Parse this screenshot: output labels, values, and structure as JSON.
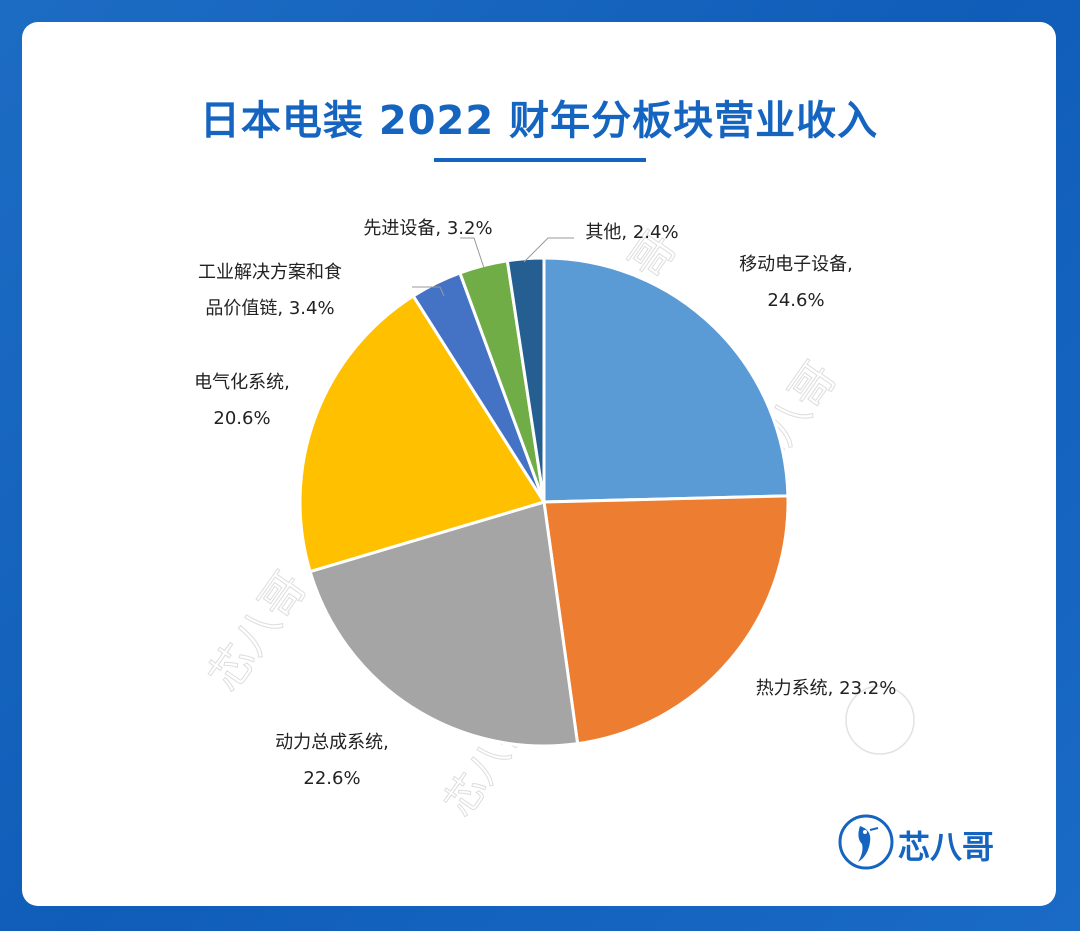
{
  "page": {
    "title": "日本电装 2022 财年分板块营业收入",
    "brand": "芯八哥",
    "watermark": "芯八哥"
  },
  "chart_data": {
    "type": "pie",
    "title": "日本电装 2022 财年分板块营业收入",
    "slices": [
      {
        "label": "移动电子设备",
        "value": 24.6,
        "display": "24.6%",
        "color": "#5b9bd5"
      },
      {
        "label": "热力系统",
        "value": 23.2,
        "display": "23.2%",
        "color": "#ed7d31"
      },
      {
        "label": "动力总成系统",
        "value": 22.6,
        "display": "22.6%",
        "color": "#a5a5a5"
      },
      {
        "label": "电气化系统",
        "value": 20.6,
        "display": "20.6%",
        "color": "#ffc000"
      },
      {
        "label": "工业解决方案和食品价值链",
        "value": 3.4,
        "display": "3.4%",
        "color": "#4472c4"
      },
      {
        "label": "先进设备",
        "value": 3.2,
        "display": "3.2%",
        "color": "#70ad47"
      },
      {
        "label": "其他",
        "value": 2.4,
        "display": "2.4%",
        "color": "#255e91"
      }
    ],
    "label_lines": [
      [
        "移动电子设备,",
        "24.6%"
      ],
      [
        "热力系统, 23.2%"
      ],
      [
        "动力总成系统,",
        "22.6%"
      ],
      [
        "电气化系统,",
        "20.6%"
      ],
      [
        "工业解决方案和食",
        "品价值链, 3.4%"
      ],
      [
        "先进设备, 3.2%"
      ],
      [
        "其他, 2.4%"
      ]
    ]
  }
}
